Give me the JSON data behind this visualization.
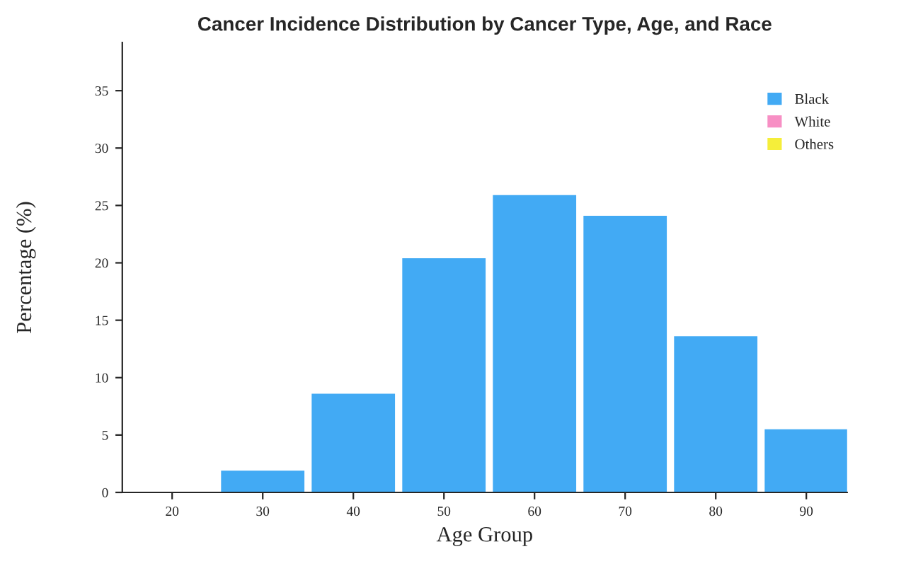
{
  "chart_data": {
    "type": "bar",
    "title": "Cancer Incidence Distribution by Cancer Type, Age, and Race",
    "xlabel": "Age Group",
    "ylabel": "Percentage (%)",
    "categories": [
      "20",
      "30",
      "40",
      "50",
      "60",
      "70",
      "80",
      "90"
    ],
    "series": [
      {
        "name": "Black",
        "color": "#42aaf4",
        "values": [
          0,
          1.9,
          8.6,
          20.4,
          25.9,
          24.1,
          13.6,
          5.5
        ]
      },
      {
        "name": "White",
        "color": "#f78fc4",
        "values": [
          0,
          0,
          0,
          0,
          0,
          0,
          0,
          0
        ]
      },
      {
        "name": "Others",
        "color": "#f5ee3a",
        "values": [
          0,
          0,
          0,
          0,
          0,
          0,
          0,
          0
        ]
      }
    ],
    "stacked": true,
    "ylim": [
      0,
      39.2
    ],
    "yticks": [
      0,
      5,
      10,
      15,
      20,
      25,
      30,
      35
    ],
    "grid": false,
    "legend": "top right"
  }
}
